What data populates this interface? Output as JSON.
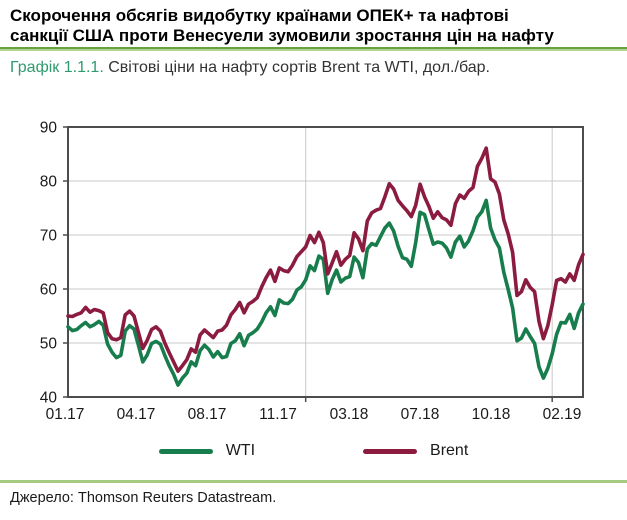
{
  "header": {
    "title_line1": "Скорочення обсягів видобутку країнами ОПЕК+  та нафтові",
    "title_line2": "санкції США проти Венесуели зумовили зростання цін на нафту",
    "caption_prefix": "Графік 1.1.1.",
    "caption_text": " Світові ціни на нафту сортів Brent та WTI, дол./бар."
  },
  "footer": {
    "source": "Джерело: Thomson Reuters Datastream."
  },
  "colors": {
    "wti_green": "#177d4c",
    "brent_maroon": "#8b1c40",
    "caption_green": "#2f9a6e",
    "grid_gray": "#c9c9c9",
    "axis_gray": "#4d4d4d",
    "separator_green_dark": "#67a23f",
    "separator_green_light": "#b2d493"
  },
  "chart_data": {
    "type": "line",
    "title": "Світові ціни на нафту сортів Brent та WTI, дол./бар.",
    "xlabel": "",
    "ylabel": "дол./бар.",
    "x_range_visible": "01.2017 – 02.2019",
    "x_tick_labels": [
      "01.17",
      "04.17",
      "08.17",
      "11.17",
      "03.18",
      "07.18",
      "10.18",
      "02.19"
    ],
    "y_ticks": [
      40,
      50,
      60,
      70,
      80,
      90
    ],
    "ylim": [
      40,
      90
    ],
    "grid": "horizontal lines at 50-80, vertical lines at year starts 2018 and 2019",
    "legend_position": "bottom-center",
    "sampling": "weekly readings digitized from daily curve",
    "year_break_indices": [
      54,
      110
    ],
    "series": [
      {
        "name": "WTI",
        "color": "#177d4c",
        "values": [
          53.0,
          52.3,
          52.5,
          53.2,
          53.8,
          53.0,
          53.4,
          54.0,
          53.3,
          49.8,
          48.3,
          47.3,
          47.7,
          52.2,
          53.2,
          52.6,
          49.6,
          46.5,
          47.8,
          49.9,
          50.3,
          49.8,
          47.7,
          45.8,
          44.2,
          42.2,
          43.5,
          44.4,
          46.5,
          45.8,
          48.6,
          49.6,
          48.8,
          47.4,
          48.4,
          47.3,
          47.5,
          49.9,
          50.4,
          51.7,
          49.5,
          51.4,
          51.9,
          52.6,
          53.9,
          55.6,
          56.7,
          55.1,
          58.0,
          57.4,
          57.3,
          58.1,
          59.8,
          60.4,
          61.7,
          64.3,
          63.4,
          66.1,
          65.5,
          59.2,
          61.7,
          63.5,
          61.3,
          62.0,
          62.3,
          65.9,
          64.9,
          62.1,
          67.4,
          68.4,
          68.1,
          69.7,
          71.3,
          72.2,
          70.7,
          67.9,
          65.8,
          65.5,
          64.2,
          68.6,
          74.2,
          73.8,
          71.0,
          68.3,
          68.7,
          68.5,
          67.6,
          65.9,
          68.7,
          69.8,
          67.8,
          68.9,
          70.8,
          73.3,
          74.3,
          76.4,
          71.3,
          69.1,
          67.6,
          63.1,
          59.9,
          56.5,
          50.4,
          50.9,
          52.6,
          51.2,
          49.9,
          45.6,
          43.5,
          45.3,
          48.0,
          51.6,
          53.8,
          53.7,
          55.3,
          52.7,
          55.6,
          57.2
        ]
      },
      {
        "name": "Brent",
        "color": "#8b1c40",
        "values": [
          55.0,
          54.9,
          55.3,
          55.6,
          56.6,
          55.7,
          56.2,
          56.0,
          55.6,
          51.9,
          50.8,
          50.6,
          51.0,
          55.2,
          55.9,
          55.0,
          52.0,
          49.0,
          50.5,
          52.5,
          53.0,
          52.2,
          50.0,
          48.2,
          46.5,
          44.8,
          45.8,
          46.9,
          48.9,
          48.3,
          51.5,
          52.4,
          51.7,
          51.0,
          52.2,
          52.4,
          53.3,
          55.2,
          56.2,
          57.5,
          55.6,
          57.2,
          57.7,
          58.4,
          60.4,
          62.1,
          63.5,
          61.4,
          63.9,
          63.4,
          63.2,
          64.4,
          66.0,
          66.9,
          67.8,
          69.9,
          68.6,
          70.5,
          68.6,
          62.8,
          64.8,
          66.9,
          64.4,
          65.5,
          66.2,
          70.4,
          69.3,
          67.1,
          72.6,
          74.1,
          74.6,
          74.9,
          77.1,
          79.5,
          78.5,
          76.4,
          75.4,
          74.5,
          73.4,
          75.5,
          79.4,
          77.1,
          75.3,
          73.1,
          74.3,
          73.2,
          72.8,
          71.8,
          75.8,
          77.4,
          76.8,
          78.1,
          78.8,
          82.7,
          84.2,
          86.1,
          80.4,
          79.8,
          77.6,
          72.8,
          70.2,
          66.8,
          58.8,
          59.5,
          61.7,
          60.3,
          59.5,
          54.0,
          50.8,
          53.2,
          57.1,
          61.6,
          61.9,
          61.3,
          62.8,
          61.6,
          64.5,
          66.4
        ]
      }
    ]
  },
  "legend": {
    "items": [
      {
        "label": "WTI"
      },
      {
        "label": "Brent"
      }
    ]
  }
}
